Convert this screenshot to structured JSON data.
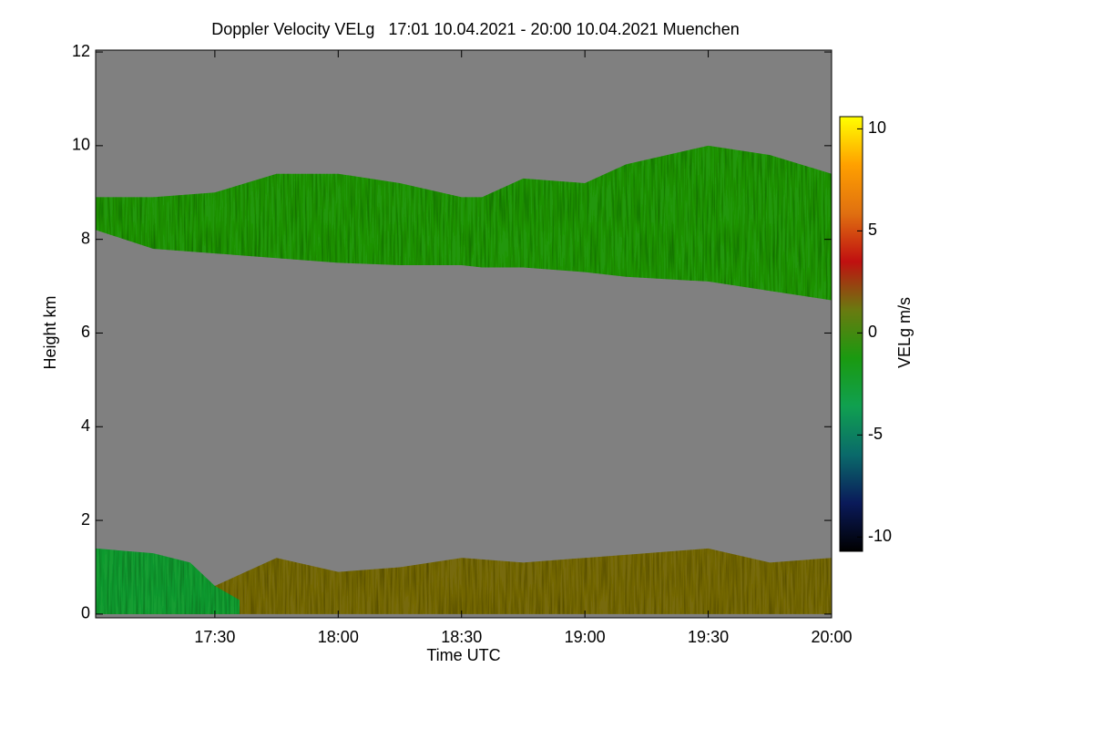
{
  "chart_data": {
    "type": "heatmap",
    "title": "Doppler Velocity VELg   17:01 10.04.2021 - 20:00 10.04.2021 Muenchen",
    "xlabel": "Time UTC",
    "ylabel": "Height km",
    "xlim": [
      17.0167,
      20.0
    ],
    "xticks": [
      {
        "value": 17.5,
        "label": "17:30"
      },
      {
        "value": 18.0,
        "label": "18:00"
      },
      {
        "value": 18.5,
        "label": "18:30"
      },
      {
        "value": 19.0,
        "label": "19:00"
      },
      {
        "value": 19.5,
        "label": "19:30"
      },
      {
        "value": 20.0,
        "label": "20:00"
      }
    ],
    "ylim": [
      -0.08,
      12.04
    ],
    "yticks": [
      0,
      2,
      4,
      6,
      8,
      10,
      12
    ],
    "background": "#808080",
    "colorbar": {
      "label": "VELg m/s",
      "lim": [
        -10.7,
        10.6
      ],
      "ticks": [
        -10,
        -5,
        0,
        5,
        10
      ],
      "colors": [
        "#000000",
        "#0a1a5a",
        "#0a6a6a",
        "#10a050",
        "#1a9a10",
        "#6a7a10",
        "#c01010",
        "#e07010",
        "#ffa000",
        "#ffff00"
      ]
    },
    "layers": [
      {
        "x": [
          17.0167,
          17.25,
          17.5,
          17.75,
          18.0,
          18.25,
          18.5,
          18.583,
          18.75,
          19.0,
          19.167,
          19.5,
          19.75,
          20.0
        ],
        "top": [
          8.9,
          8.9,
          9.0,
          9.4,
          9.4,
          9.2,
          8.9,
          8.9,
          9.3,
          9.2,
          9.6,
          10.0,
          9.8,
          9.4
        ],
        "base": [
          8.2,
          7.8,
          7.7,
          7.6,
          7.5,
          7.45,
          7.45,
          7.4,
          7.4,
          7.3,
          7.2,
          7.1,
          6.9,
          6.7
        ],
        "value": -1
      },
      {
        "x": [
          17.0167,
          17.25,
          17.5,
          17.75,
          18.0,
          18.25,
          18.5,
          18.75,
          19.0,
          19.25,
          19.5,
          19.75,
          20.0
        ],
        "top": [
          0.9,
          0.8,
          0.6,
          1.2,
          0.9,
          1.0,
          1.2,
          1.1,
          1.2,
          1.3,
          1.4,
          1.1,
          1.2
        ],
        "base": [
          0,
          0,
          0,
          0,
          0,
          0,
          0,
          0,
          0,
          0,
          0,
          0,
          0
        ],
        "value": 1.5
      },
      {
        "x": [
          17.0167,
          17.25,
          17.4,
          17.5,
          17.6
        ],
        "top": [
          1.4,
          1.3,
          1.1,
          0.6,
          0.3
        ],
        "base": [
          0,
          0,
          0,
          0,
          0
        ],
        "value": -2.5
      }
    ]
  }
}
